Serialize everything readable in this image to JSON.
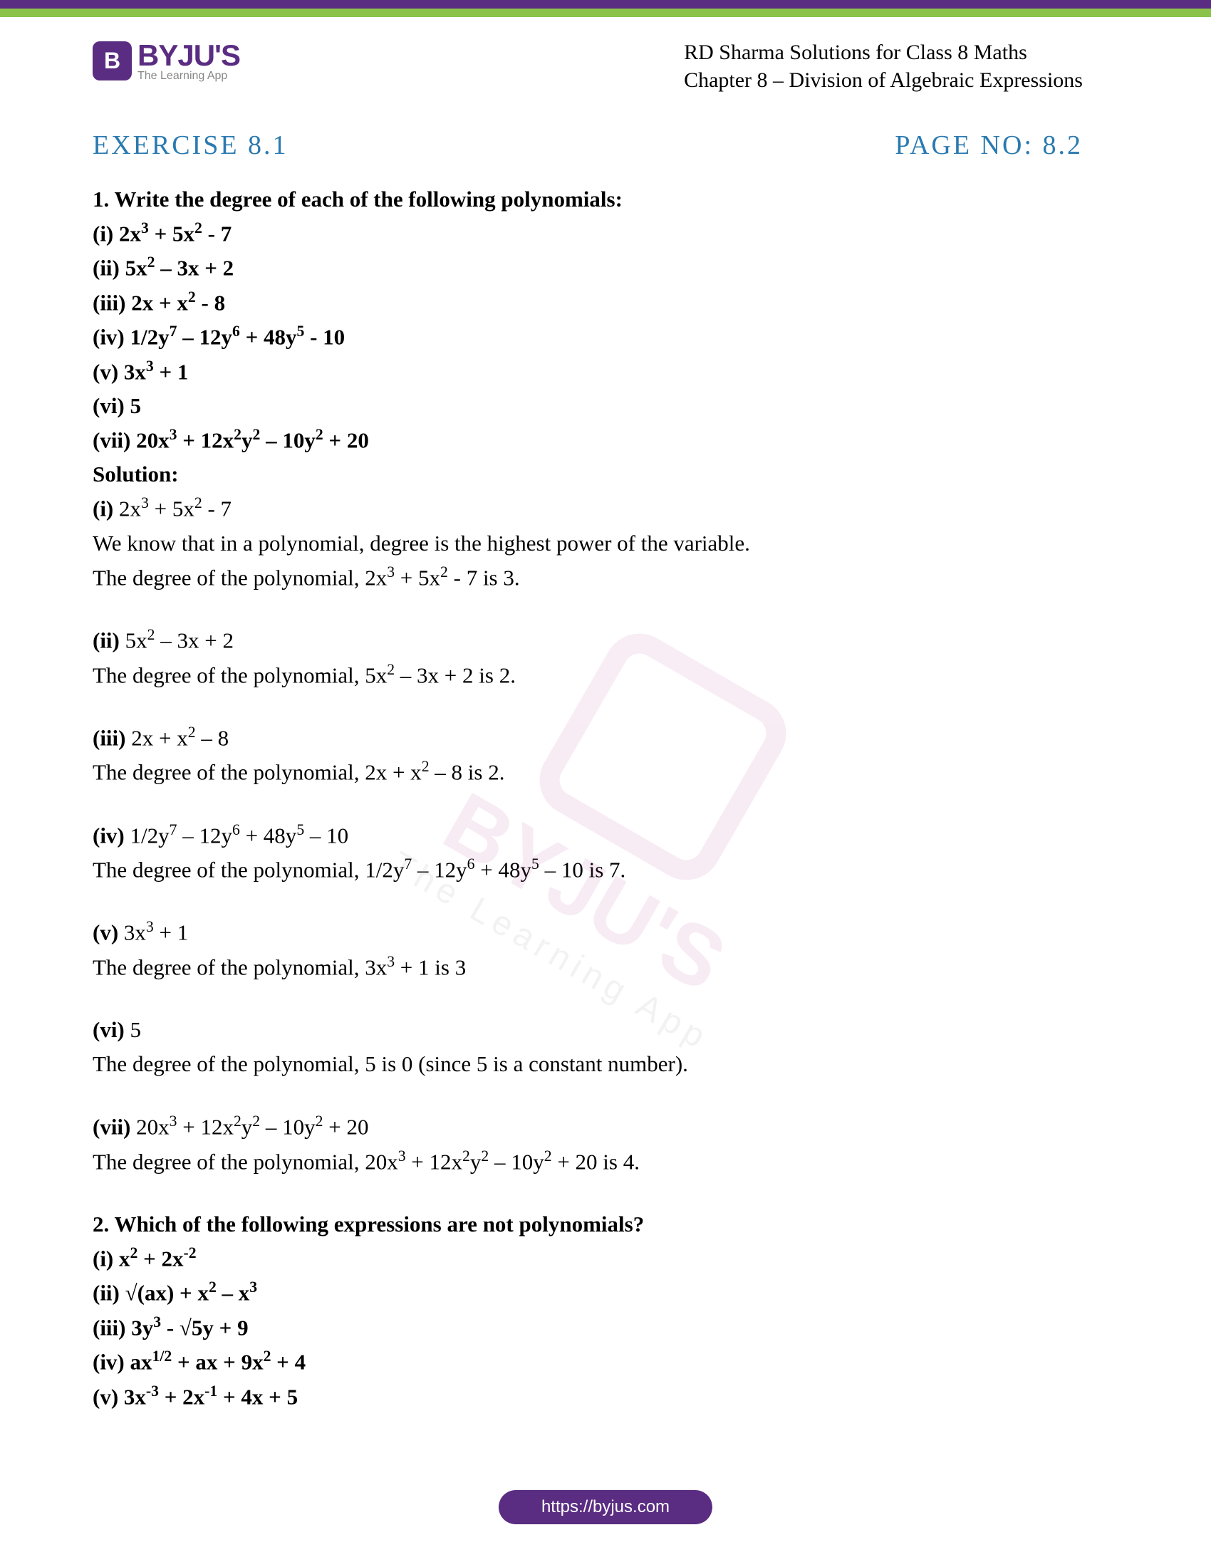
{
  "brand": {
    "logo_letter": "B",
    "name": "BYJU'S",
    "tagline": "The Learning App"
  },
  "header": {
    "line1": "RD Sharma Solutions for Class 8 Maths",
    "line2": "Chapter 8 – Division of Algebraic Expressions"
  },
  "exercise": {
    "title": "EXERCISE 8.1",
    "page_no": "PAGE NO: 8.2"
  },
  "q1": {
    "title": "1. Write the degree of each of the following polynomials:",
    "items": {
      "i": "(i) 2x³ + 5x² - 7",
      "ii": "(ii) 5x² – 3x + 2",
      "iii": "(iii) 2x + x² - 8",
      "iv": "(iv) 1/2y⁷ – 12y⁶ + 48y⁵ - 10",
      "v": "(v) 3x³ + 1",
      "vi": "(vi) 5",
      "vii": "(vii) 20x³ + 12x²y² – 10y² + 20"
    },
    "solution_label": "Solution:",
    "solutions": {
      "i_expr": "(i) 2x³ + 5x² - 7",
      "i_line1": "We know that in a polynomial, degree is the highest power of the variable.",
      "i_line2": "The degree of the polynomial, 2x³ + 5x² - 7 is 3.",
      "ii_expr": "(ii) 5x² – 3x + 2",
      "ii_line": "The degree of the polynomial, 5x² – 3x + 2 is 2.",
      "iii_expr": "(iii) 2x + x² – 8",
      "iii_line": "The degree of the polynomial, 2x + x² – 8 is 2.",
      "iv_expr": "(iv) 1/2y⁷ – 12y⁶ + 48y⁵ – 10",
      "iv_line": "The degree of the polynomial, 1/2y⁷ – 12y⁶ + 48y⁵ – 10 is 7.",
      "v_expr": "(v) 3x³ + 1",
      "v_line": "The degree of the polynomial, 3x³ + 1 is 3",
      "vi_expr": "(vi) 5",
      "vi_line": "The degree of the polynomial, 5 is 0 (since 5 is a constant number).",
      "vii_expr": "(vii) 20x³ + 12x²y² – 10y² + 20",
      "vii_line": "The degree of the polynomial, 20x³ + 12x²y² – 10y² + 20 is 4."
    }
  },
  "q2": {
    "title": "2. Which of the following expressions are not polynomials?",
    "items": {
      "i": "(i) x² + 2x⁻²",
      "ii": "(ii) √(ax) + x² – x³",
      "iii": "(iii) 3y³ - √5y + 9",
      "iv": "(iv) ax¹ᐟ² + ax + 9x² + 4",
      "v": "(v) 3x⁻³ + 2x⁻¹ + 4x + 5"
    }
  },
  "footer": {
    "url": "https://byjus.com"
  },
  "colors": {
    "purple": "#5a2d82",
    "green": "#8bc34a",
    "blue": "#2a7ab0",
    "watermark_pink": "#b94a9c"
  }
}
